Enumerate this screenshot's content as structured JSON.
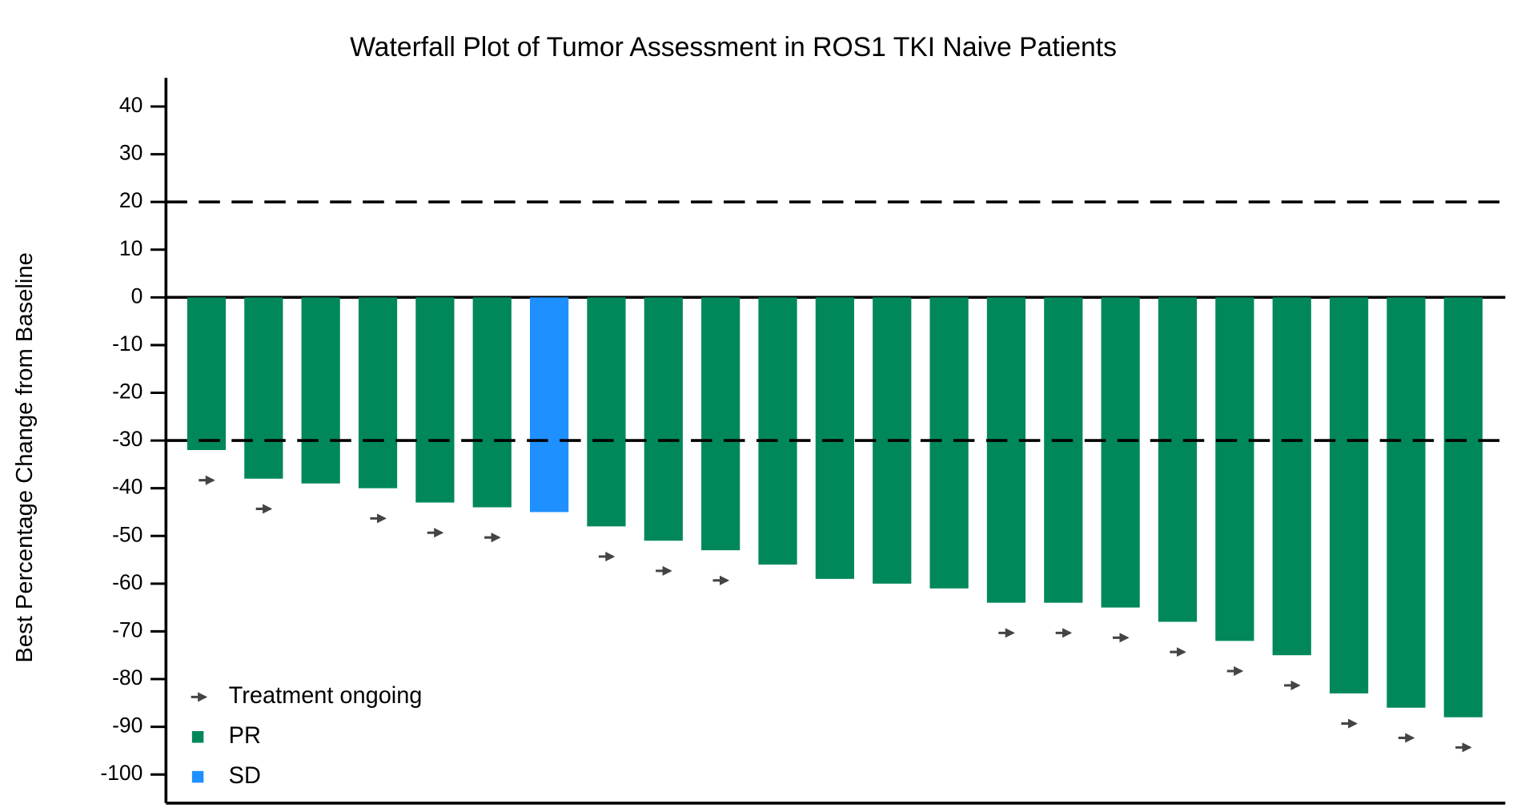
{
  "chart_data": {
    "type": "waterfall",
    "title": "Waterfall Plot of Tumor Assessment in ROS1 TKI Naive Patients",
    "ylabel": "Best Percentage Change from Baseline",
    "values": [
      -32,
      -38,
      -39,
      -40,
      -43,
      -44,
      -45,
      -48,
      -51,
      -53,
      -56,
      -59,
      -60,
      -61,
      -64,
      -64,
      -65,
      -68,
      -72,
      -75,
      -83,
      -86,
      -88
    ],
    "status": [
      "PR",
      "PR",
      "PR",
      "PR",
      "PR",
      "PR",
      "SD",
      "PR",
      "PR",
      "PR",
      "PR",
      "PR",
      "PR",
      "PR",
      "PR",
      "PR",
      "PR",
      "PR",
      "PR",
      "PR",
      "PR",
      "PR",
      "PR"
    ],
    "ongoing": [
      true,
      true,
      false,
      true,
      true,
      true,
      false,
      true,
      true,
      true,
      false,
      false,
      false,
      false,
      true,
      true,
      true,
      true,
      true,
      true,
      true,
      true,
      true
    ],
    "ongoing_label": "Treatment ongoing",
    "ongoing_color": "#444444",
    "legend": [
      {
        "name": "PR",
        "color": "#00885a"
      },
      {
        "name": "SD",
        "color": "#1e90ff"
      }
    ],
    "reference_lines": [
      20,
      -30
    ],
    "ylim": [
      -106,
      46
    ],
    "yticks": [
      -100,
      -90,
      -80,
      -70,
      -60,
      -50,
      -40,
      -30,
      -20,
      -10,
      0,
      10,
      20,
      30,
      40
    ],
    "legend_position": "lower left"
  }
}
